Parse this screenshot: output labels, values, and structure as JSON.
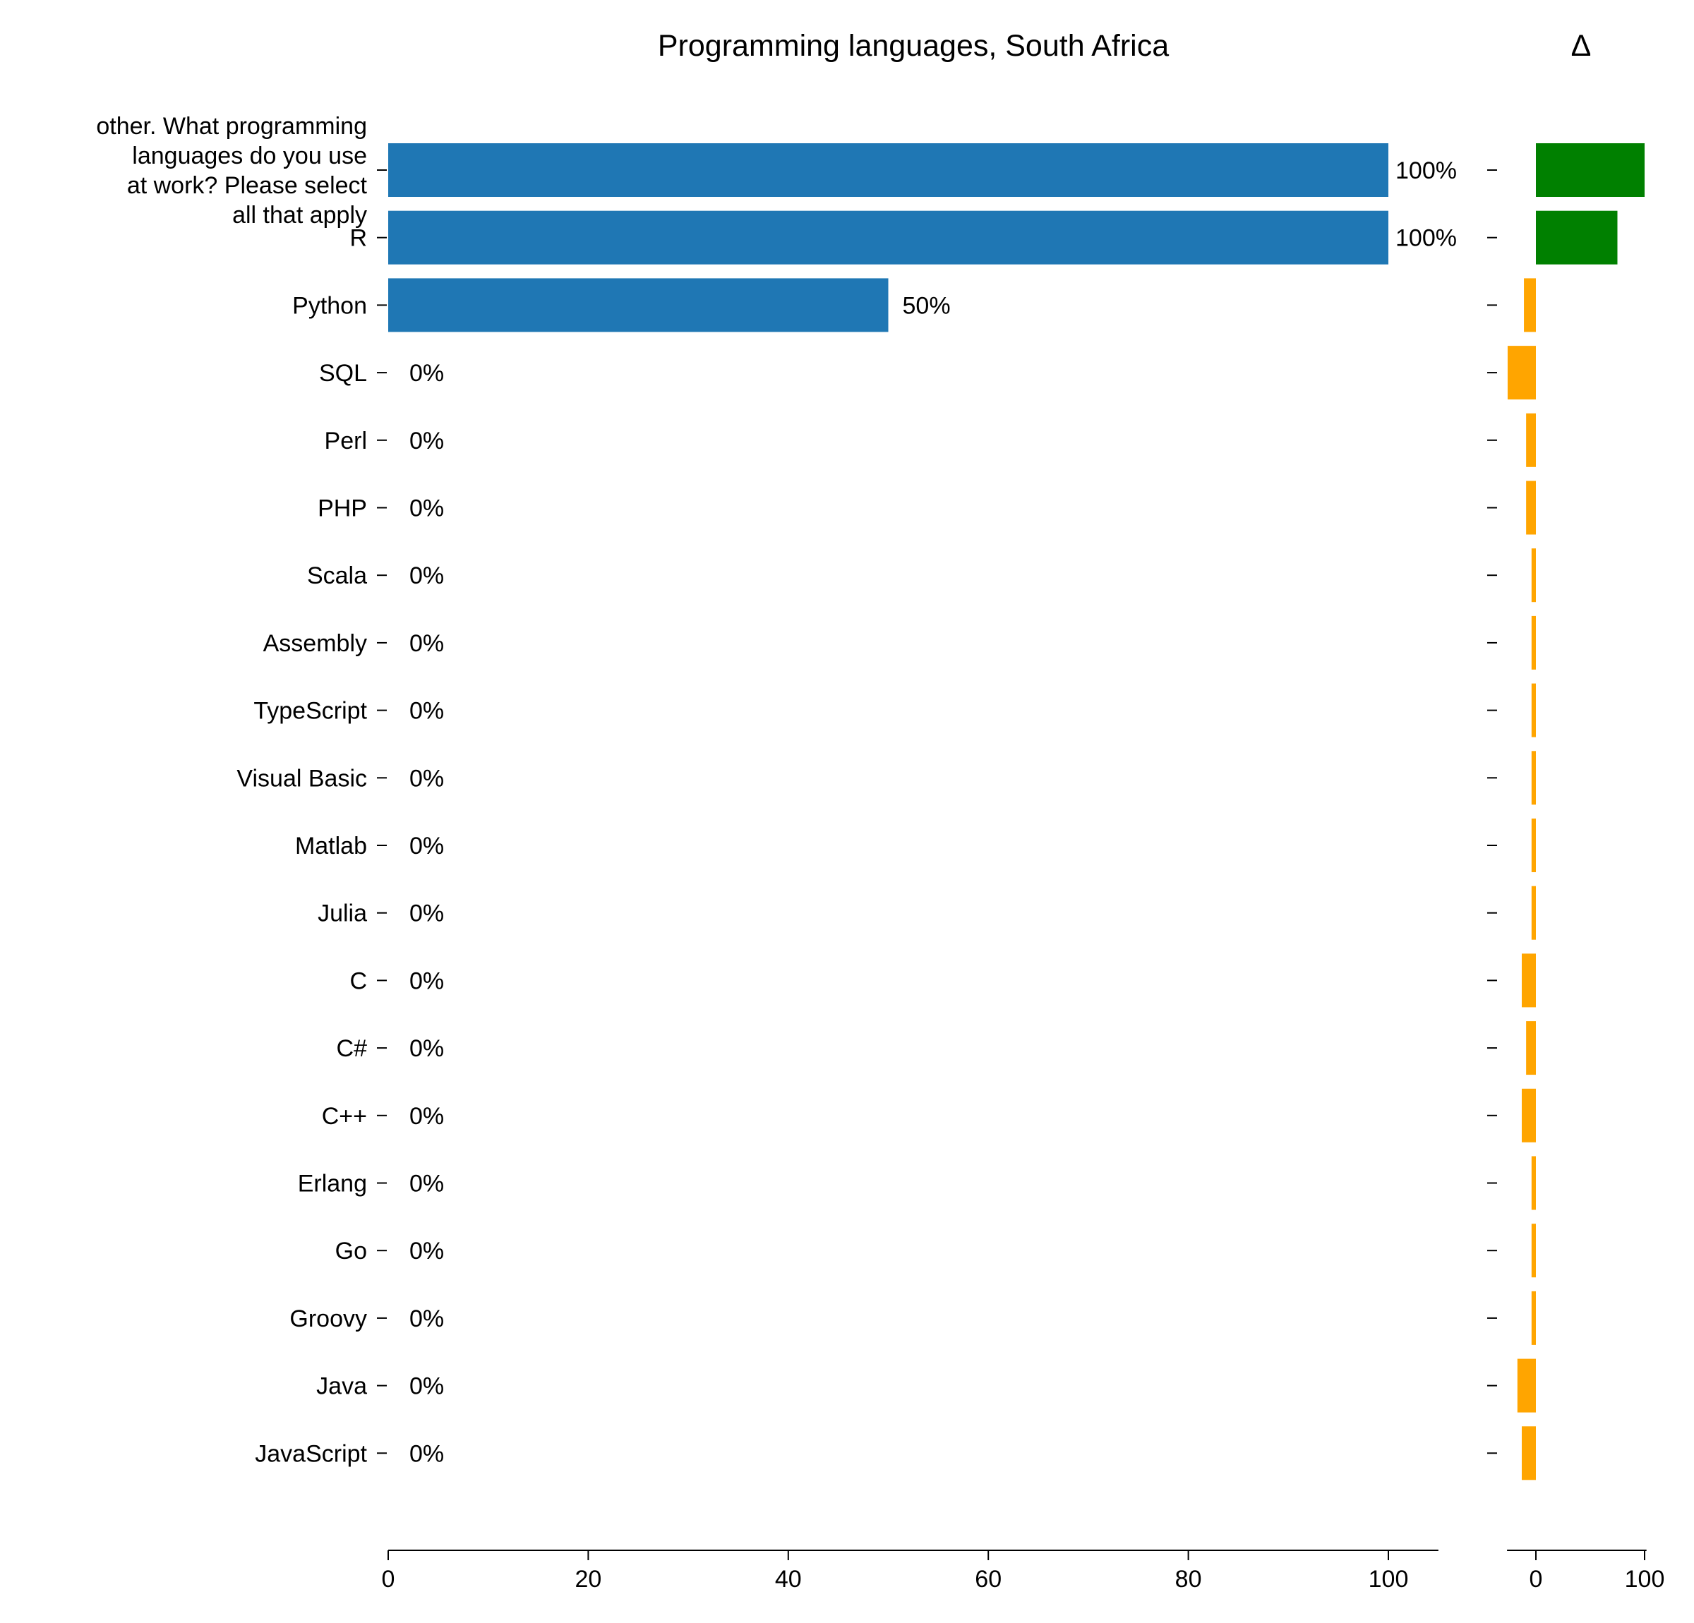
{
  "chart_data": {
    "type": "bar",
    "orientation": "horizontal",
    "title": "Programming languages, South Africa",
    "delta_title": "Δ",
    "categories": [
      "other. What programming languages do you use at work? Please select all that apply",
      "R",
      "Python",
      "SQL",
      "Perl",
      "PHP",
      "Scala",
      "Assembly",
      "TypeScript",
      "Visual Basic",
      "Matlab",
      "Julia",
      "C",
      "C#",
      "C++",
      "Erlang",
      "Go",
      "Groovy",
      "Java",
      "JavaScript"
    ],
    "category_lines": [
      [
        "other. What programming",
        "languages do you use",
        "at work? Please select",
        "all that apply"
      ]
    ],
    "values": [
      100,
      100,
      50,
      0,
      0,
      0,
      0,
      0,
      0,
      0,
      0,
      0,
      0,
      0,
      0,
      0,
      0,
      0,
      0,
      0
    ],
    "value_labels": [
      "100%",
      "100%",
      "50%",
      "0%",
      "0%",
      "0%",
      "0%",
      "0%",
      "0%",
      "0%",
      "0%",
      "0%",
      "0%",
      "0%",
      "0%",
      "0%",
      "0%",
      "0%",
      "0%",
      "0%"
    ],
    "xlim": [
      0,
      105
    ],
    "xticks": [
      0,
      20,
      40,
      60,
      80,
      100
    ],
    "xtick_labels": [
      "0",
      "20",
      "40",
      "60",
      "80",
      "100"
    ],
    "bar_color": "#1f77b4",
    "delta": {
      "values": [
        100,
        75,
        -11,
        -26,
        -9,
        -9,
        -4,
        -4,
        -4,
        -4,
        -4,
        -4,
        -13,
        -9,
        -13,
        -4,
        -4,
        -4,
        -17,
        -13
      ],
      "xlim": [
        -35,
        105
      ],
      "xticks": [
        0,
        100
      ],
      "xtick_labels": [
        "0",
        "100"
      ],
      "positive_color": "#008000",
      "negative_color": "#ffa500"
    },
    "grid": false,
    "legend": "none"
  }
}
